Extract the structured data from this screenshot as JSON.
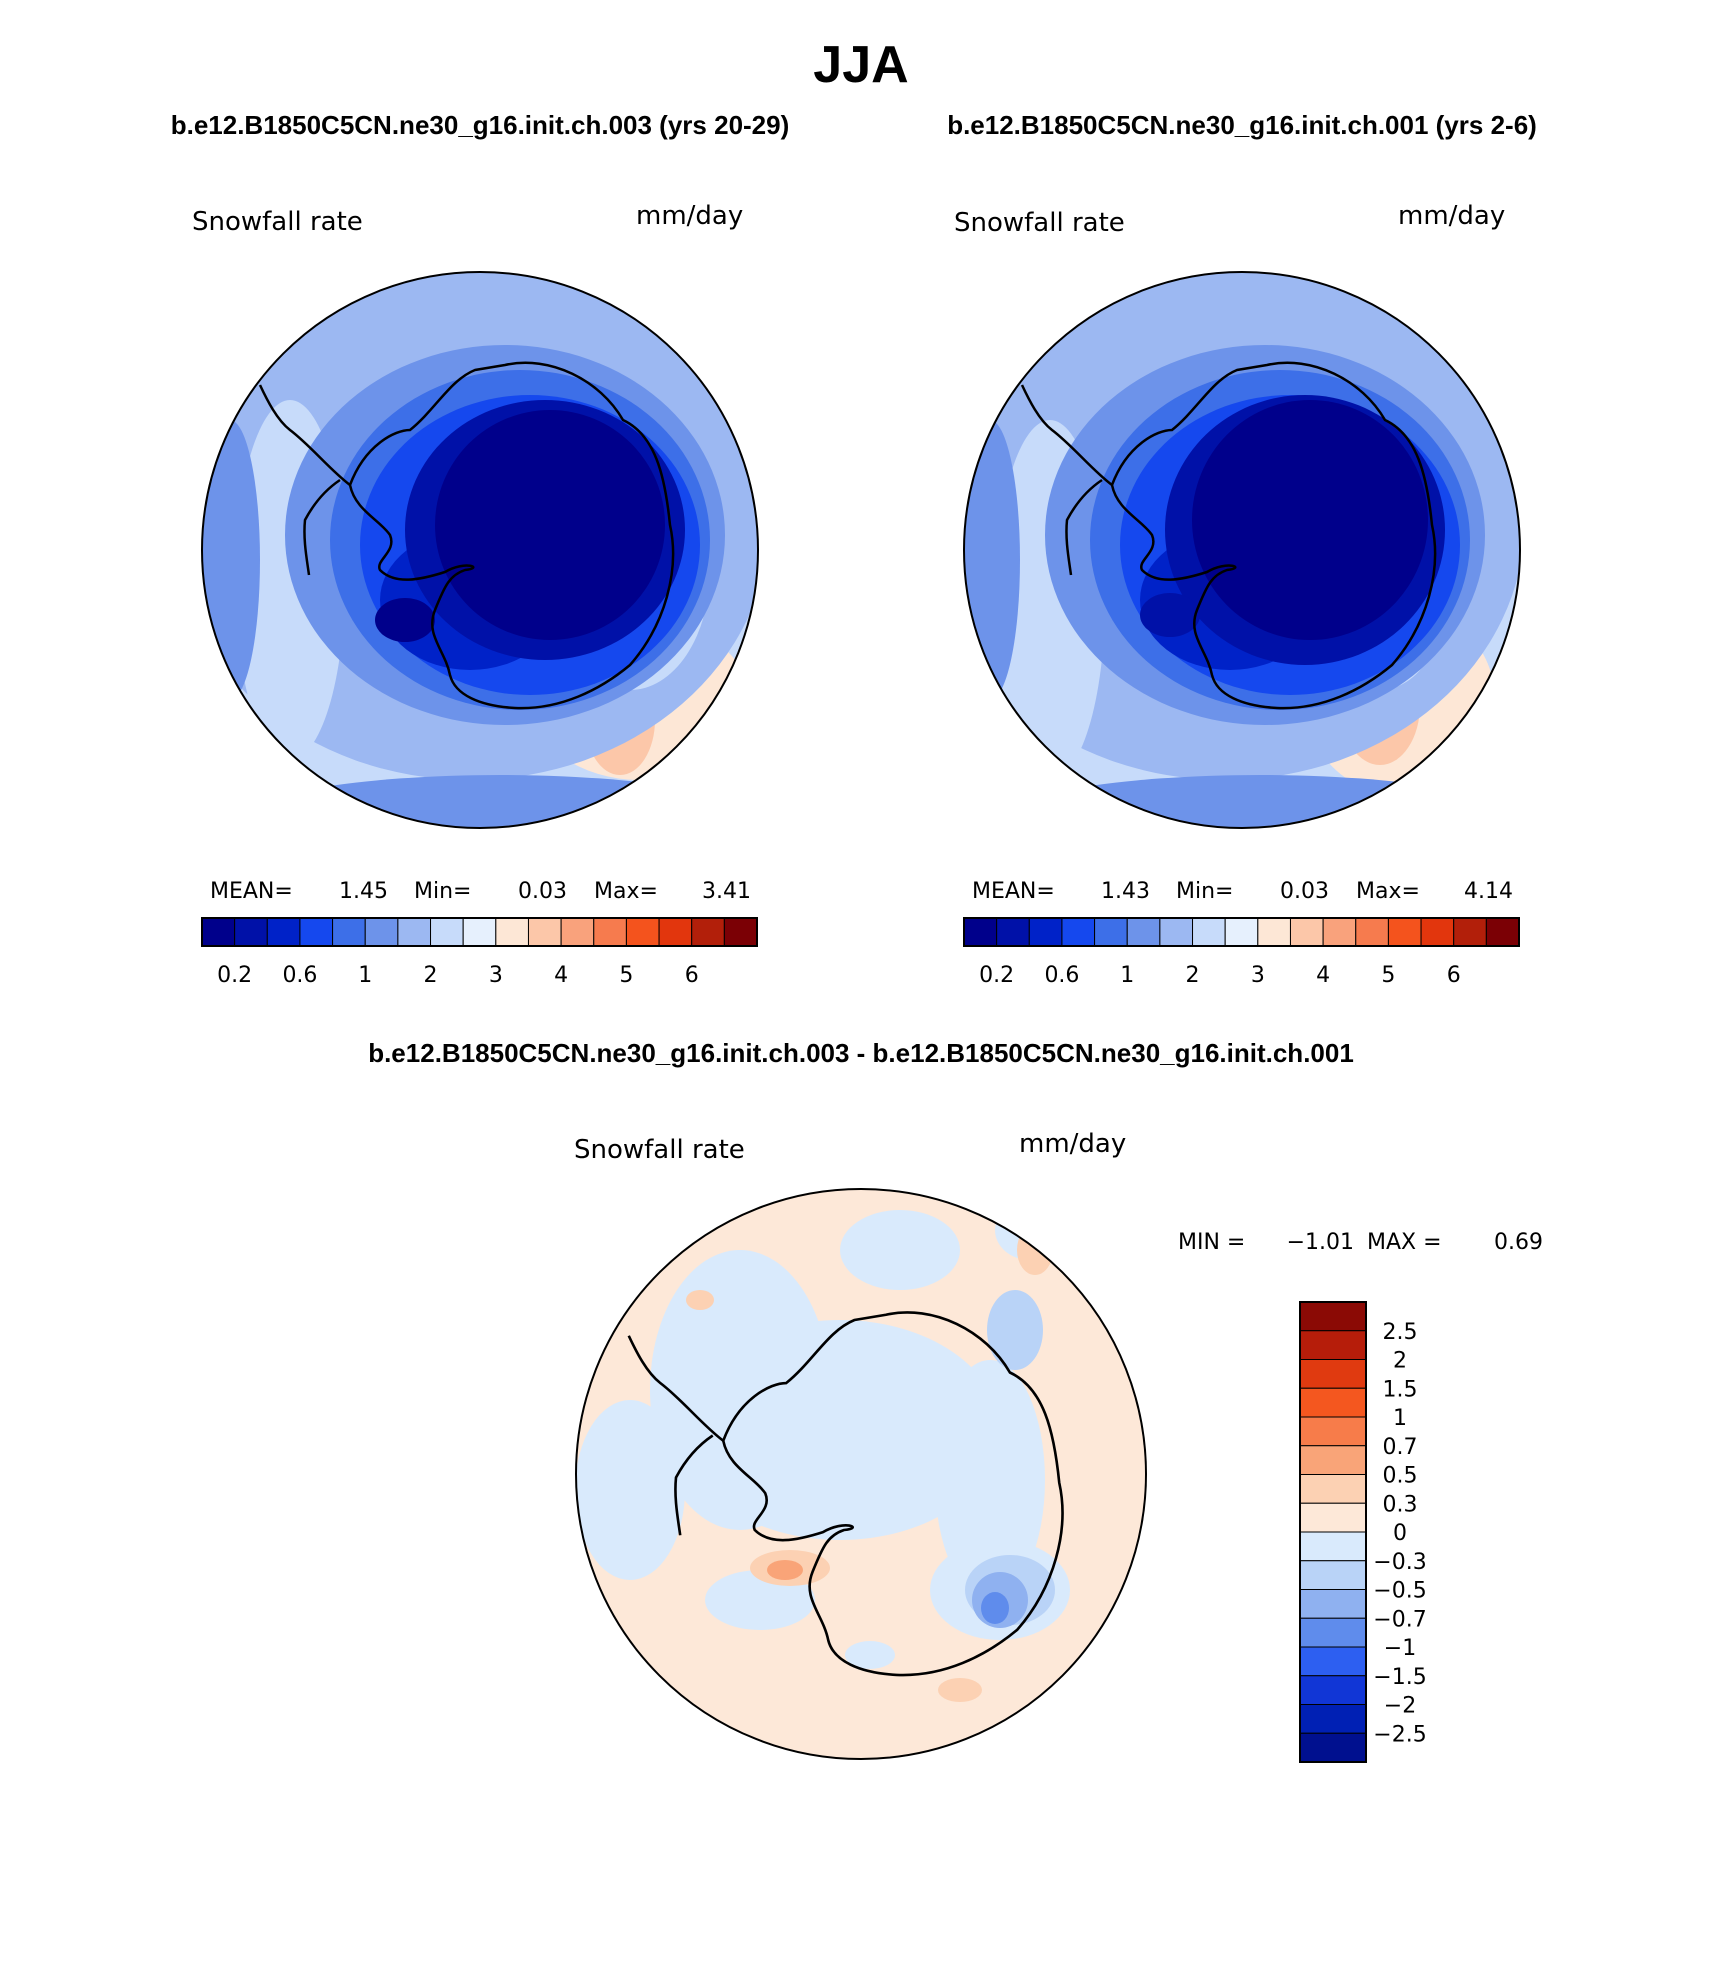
{
  "title": "JJA",
  "panels": [
    {
      "header": "b.e12.B1850C5CN.ne30_g16.init.ch.003 (yrs 20-29)",
      "field": "Snowfall rate",
      "units": "mm/day",
      "mean_label": "MEAN=",
      "mean": "1.45",
      "min_label": "Min=",
      "min": "0.03",
      "max_label": "Max=",
      "max": "3.41"
    },
    {
      "header": "b.e12.B1850C5CN.ne30_g16.init.ch.001 (yrs 2-6)",
      "field": "Snowfall rate",
      "units": "mm/day",
      "mean_label": "MEAN=",
      "mean": "1.43",
      "min_label": "Min=",
      "min": "0.03",
      "max_label": "Max=",
      "max": "4.14"
    }
  ],
  "top_colorbar": {
    "colors": [
      "#00008b",
      "#0011a8",
      "#0022c8",
      "#1548ee",
      "#3d6fe8",
      "#6d93ea",
      "#9cb8f2",
      "#c7dbfa",
      "#e6f0fd",
      "#fde7d6",
      "#fcc7a9",
      "#f9a27c",
      "#f67b4e",
      "#f4531d",
      "#e2360d",
      "#b21f0a",
      "#7b0005"
    ],
    "tick_labels": [
      "0.2",
      "0.6",
      "1",
      "2",
      "3",
      "4",
      "5",
      "6"
    ]
  },
  "diff": {
    "header": "b.e12.B1850C5CN.ne30_g16.init.ch.003 - b.e12.B1850C5CN.ne30_g16.init.ch.001",
    "field": "Snowfall rate",
    "units": "mm/day",
    "min_label": "MIN =",
    "min": "−1.01",
    "max_label": "MAX =",
    "max": "0.69"
  },
  "diff_colorbar": {
    "colors_top_to_bottom": [
      "#8b0a05",
      "#b61d0a",
      "#e03a10",
      "#f4571f",
      "#f77c4a",
      "#f9a478",
      "#fcd1b3",
      "#fde8d8",
      "#d9eafc",
      "#b9d3f7",
      "#8fb1f0",
      "#5f8cec",
      "#2d5ff1",
      "#1136d6",
      "#0020b4",
      "#00108f"
    ],
    "tick_labels": [
      "2.5",
      "2",
      "1.5",
      "1",
      "0.7",
      "0.5",
      "0.3",
      "0",
      "−0.3",
      "−0.5",
      "−0.7",
      "−1",
      "−1.5",
      "−2",
      "−2.5"
    ]
  }
}
